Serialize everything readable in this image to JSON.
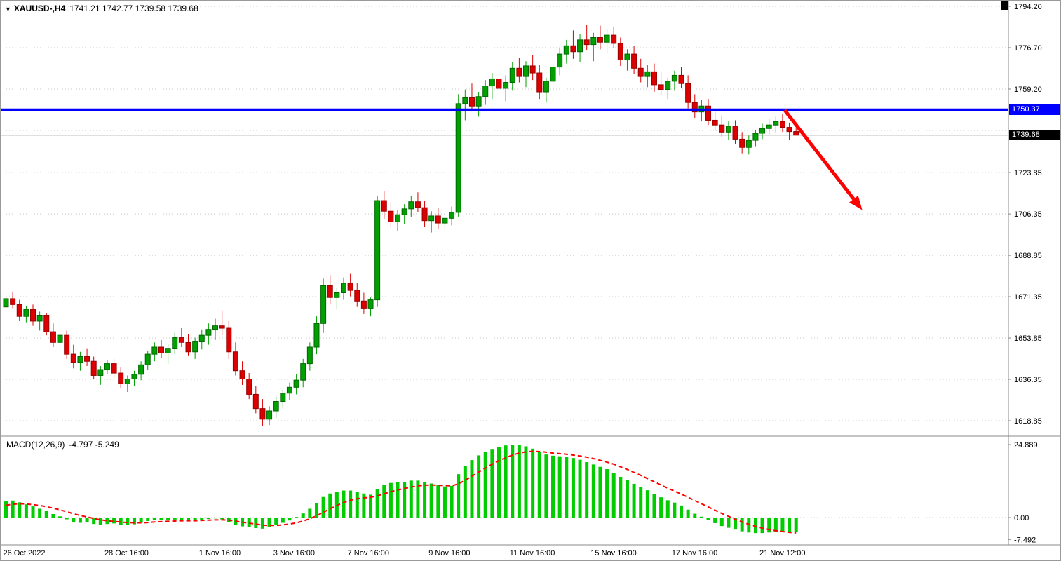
{
  "title_bar": {
    "dropdown_icon": "▼",
    "symbol": "XAUUSD-,H4",
    "ohlc": "1741.21 1742.77 1739.58 1739.68"
  },
  "price_axis": {
    "labels": [
      "1794.20",
      "1776.70",
      "1759.20",
      "1723.85",
      "1706.35",
      "1688.85",
      "1671.35",
      "1653.85",
      "1636.35",
      "1618.85"
    ],
    "blue_line_badge": "1750.37",
    "current_price_badge": "1739.68"
  },
  "macd_panel": {
    "label": "MACD(12,26,9)",
    "values": "-4.797 -5.249",
    "axis_labels": [
      "24.889",
      "0.00",
      "-7.492"
    ]
  },
  "colors": {
    "bull": "#00A000",
    "bull_stroke": "#006600",
    "bear": "#DD0000",
    "bear_stroke": "#990000",
    "macd_hist": "#00CC00",
    "signal": "#FF0000",
    "level_line": "#0000FF",
    "current_line": "#808080",
    "grid": "#C8C8C8",
    "separator": "#888888",
    "arrow": "#FF0000",
    "axis_text": "#000000"
  },
  "chart_data": [
    {
      "type": "candlestick",
      "title": "XAUUSD-,H4",
      "timeframe": "H4",
      "last_ohlc": {
        "open": 1741.21,
        "high": 1742.77,
        "low": 1739.58,
        "close": 1739.68
      },
      "ylim": [
        1612.0,
        1796.5
      ],
      "grid_levels": [
        1794.2,
        1776.7,
        1759.2,
        1741.7,
        1723.85,
        1706.35,
        1688.85,
        1671.35,
        1653.85,
        1636.35,
        1618.85
      ],
      "horizontal_level": 1750.37,
      "last_price": 1739.68,
      "x_tick_labels": [
        {
          "i": 0,
          "label": "26 Oct 2022"
        },
        {
          "i": 15,
          "label": "28 Oct 16:00"
        },
        {
          "i": 29,
          "label": "1 Nov 16:00"
        },
        {
          "i": 40,
          "label": "3 Nov 16:00"
        },
        {
          "i": 51,
          "label": "7 Nov 16:00"
        },
        {
          "i": 63,
          "label": "9 Nov 16:00"
        },
        {
          "i": 75,
          "label": "11 Nov 16:00"
        },
        {
          "i": 87,
          "label": "15 Nov 16:00"
        },
        {
          "i": 99,
          "label": "17 Nov 16:00"
        },
        {
          "i": 112,
          "label": "21 Nov 12:00"
        }
      ],
      "annotation_arrow": {
        "from": {
          "i": 115.3,
          "price": 1750.3
        },
        "to": {
          "i": 126.8,
          "price": 1708.0
        }
      },
      "candles": [
        [
          1667.0,
          1672.0,
          1664.0,
          1670.5
        ],
        [
          1670.5,
          1673.5,
          1666.5,
          1668.0
        ],
        [
          1668.0,
          1670.0,
          1661.0,
          1663.0
        ],
        [
          1663.0,
          1667.5,
          1660.5,
          1666.0
        ],
        [
          1666.0,
          1668.0,
          1659.0,
          1661.0
        ],
        [
          1661.0,
          1665.0,
          1657.0,
          1663.5
        ],
        [
          1663.5,
          1664.5,
          1655.0,
          1656.5
        ],
        [
          1656.5,
          1660.0,
          1650.0,
          1652.0
        ],
        [
          1652.0,
          1656.5,
          1648.5,
          1655.0
        ],
        [
          1655.0,
          1657.0,
          1645.0,
          1647.0
        ],
        [
          1647.0,
          1651.0,
          1641.0,
          1643.5
        ],
        [
          1643.5,
          1648.0,
          1640.0,
          1646.0
        ],
        [
          1646.0,
          1649.5,
          1642.0,
          1644.0
        ],
        [
          1644.0,
          1646.0,
          1636.5,
          1638.0
        ],
        [
          1638.0,
          1642.0,
          1634.0,
          1640.5
        ],
        [
          1640.5,
          1644.5,
          1638.5,
          1643.0
        ],
        [
          1643.0,
          1645.0,
          1637.0,
          1639.0
        ],
        [
          1639.0,
          1641.5,
          1632.5,
          1634.5
        ],
        [
          1634.5,
          1638.0,
          1631.0,
          1636.5
        ],
        [
          1636.5,
          1640.0,
          1633.5,
          1638.5
        ],
        [
          1638.5,
          1644.0,
          1636.0,
          1642.5
        ],
        [
          1642.5,
          1648.5,
          1640.5,
          1647.0
        ],
        [
          1647.0,
          1652.0,
          1644.0,
          1650.0
        ],
        [
          1650.0,
          1653.0,
          1645.5,
          1647.5
        ],
        [
          1647.5,
          1651.5,
          1643.0,
          1649.5
        ],
        [
          1649.5,
          1656.0,
          1647.0,
          1654.0
        ],
        [
          1654.0,
          1658.0,
          1650.0,
          1652.0
        ],
        [
          1652.0,
          1655.5,
          1646.5,
          1648.0
        ],
        [
          1648.0,
          1654.0,
          1645.0,
          1652.5
        ],
        [
          1652.5,
          1657.5,
          1649.0,
          1655.0
        ],
        [
          1655.0,
          1660.0,
          1651.0,
          1657.5
        ],
        [
          1657.5,
          1662.0,
          1653.0,
          1659.0
        ],
        [
          1659.0,
          1665.5,
          1655.0,
          1658.0
        ],
        [
          1658.0,
          1661.0,
          1645.0,
          1648.0
        ],
        [
          1648.0,
          1652.0,
          1638.0,
          1640.0
        ],
        [
          1640.0,
          1644.0,
          1634.0,
          1636.5
        ],
        [
          1636.5,
          1639.0,
          1628.0,
          1630.0
        ],
        [
          1630.0,
          1633.5,
          1622.0,
          1624.0
        ],
        [
          1624.0,
          1628.0,
          1616.5,
          1619.5
        ],
        [
          1619.5,
          1625.0,
          1617.0,
          1623.0
        ],
        [
          1623.0,
          1629.0,
          1620.0,
          1627.0
        ],
        [
          1627.0,
          1632.0,
          1624.0,
          1630.5
        ],
        [
          1630.5,
          1635.0,
          1627.5,
          1633.0
        ],
        [
          1633.0,
          1638.5,
          1630.0,
          1636.0
        ],
        [
          1636.0,
          1645.0,
          1633.0,
          1643.0
        ],
        [
          1643.0,
          1652.0,
          1640.0,
          1650.0
        ],
        [
          1650.0,
          1663.0,
          1647.0,
          1660.0
        ],
        [
          1660.0,
          1679.0,
          1656.0,
          1676.0
        ],
        [
          1676.0,
          1680.5,
          1668.0,
          1671.0
        ],
        [
          1671.0,
          1675.0,
          1666.0,
          1673.0
        ],
        [
          1673.0,
          1679.5,
          1670.0,
          1677.0
        ],
        [
          1677.0,
          1681.0,
          1671.5,
          1674.0
        ],
        [
          1674.0,
          1677.0,
          1667.0,
          1669.5
        ],
        [
          1669.5,
          1673.0,
          1664.0,
          1666.5
        ],
        [
          1666.5,
          1671.0,
          1663.0,
          1670.0
        ],
        [
          1670.0,
          1714.0,
          1667.0,
          1712.0
        ],
        [
          1712.0,
          1716.0,
          1704.0,
          1707.5
        ],
        [
          1707.5,
          1711.0,
          1700.5,
          1703.0
        ],
        [
          1703.0,
          1708.0,
          1699.0,
          1706.0
        ],
        [
          1706.0,
          1710.5,
          1702.0,
          1708.5
        ],
        [
          1708.5,
          1714.0,
          1705.0,
          1711.5
        ],
        [
          1711.5,
          1715.5,
          1707.0,
          1709.0
        ],
        [
          1709.0,
          1712.0,
          1701.0,
          1703.5
        ],
        [
          1703.5,
          1707.5,
          1698.5,
          1705.5
        ],
        [
          1705.5,
          1709.0,
          1700.0,
          1702.5
        ],
        [
          1702.5,
          1706.5,
          1699.5,
          1704.5
        ],
        [
          1704.5,
          1709.5,
          1701.5,
          1707.0
        ],
        [
          1707.0,
          1757.0,
          1705.0,
          1753.0
        ],
        [
          1753.0,
          1759.0,
          1746.0,
          1755.5
        ],
        [
          1755.5,
          1761.5,
          1750.0,
          1752.0
        ],
        [
          1752.0,
          1758.0,
          1747.5,
          1756.0
        ],
        [
          1756.0,
          1763.0,
          1752.5,
          1760.5
        ],
        [
          1760.5,
          1766.0,
          1755.0,
          1763.5
        ],
        [
          1763.5,
          1768.5,
          1757.0,
          1759.5
        ],
        [
          1759.5,
          1765.0,
          1754.0,
          1762.0
        ],
        [
          1762.0,
          1770.5,
          1758.5,
          1768.0
        ],
        [
          1768.0,
          1772.5,
          1762.0,
          1764.5
        ],
        [
          1764.5,
          1771.0,
          1760.0,
          1769.0
        ],
        [
          1769.0,
          1773.5,
          1763.0,
          1766.0
        ],
        [
          1766.0,
          1769.5,
          1755.0,
          1758.0
        ],
        [
          1758.0,
          1764.0,
          1753.5,
          1762.5
        ],
        [
          1762.5,
          1770.0,
          1759.0,
          1768.5
        ],
        [
          1768.5,
          1776.5,
          1765.0,
          1774.0
        ],
        [
          1774.0,
          1780.0,
          1770.0,
          1777.5
        ],
        [
          1777.5,
          1784.0,
          1772.0,
          1775.0
        ],
        [
          1775.0,
          1782.5,
          1770.5,
          1780.0
        ],
        [
          1780.0,
          1786.5,
          1775.5,
          1778.0
        ],
        [
          1778.0,
          1783.0,
          1771.0,
          1781.0
        ],
        [
          1781.0,
          1786.0,
          1776.0,
          1779.0
        ],
        [
          1779.0,
          1784.5,
          1774.5,
          1782.0
        ],
        [
          1782.0,
          1785.5,
          1776.5,
          1778.5
        ],
        [
          1778.5,
          1781.0,
          1769.0,
          1771.5
        ],
        [
          1771.5,
          1776.0,
          1767.0,
          1774.0
        ],
        [
          1774.0,
          1777.5,
          1765.5,
          1768.0
        ],
        [
          1768.0,
          1772.0,
          1762.0,
          1764.5
        ],
        [
          1764.5,
          1769.5,
          1760.0,
          1766.5
        ],
        [
          1766.5,
          1770.0,
          1758.0,
          1761.0
        ],
        [
          1761.0,
          1766.5,
          1756.5,
          1759.0
        ],
        [
          1759.0,
          1764.0,
          1755.0,
          1762.5
        ],
        [
          1762.5,
          1767.0,
          1758.5,
          1765.0
        ],
        [
          1765.0,
          1768.5,
          1759.5,
          1761.5
        ],
        [
          1761.5,
          1765.0,
          1751.0,
          1753.5
        ],
        [
          1753.5,
          1757.0,
          1747.0,
          1749.5
        ],
        [
          1749.5,
          1754.5,
          1745.5,
          1752.0
        ],
        [
          1752.0,
          1755.0,
          1744.0,
          1746.0
        ],
        [
          1746.0,
          1750.5,
          1741.5,
          1744.0
        ],
        [
          1744.0,
          1748.0,
          1739.0,
          1741.0
        ],
        [
          1741.0,
          1745.5,
          1737.5,
          1743.5
        ],
        [
          1743.5,
          1746.0,
          1736.0,
          1738.0
        ],
        [
          1738.0,
          1741.0,
          1732.0,
          1734.5
        ],
        [
          1734.5,
          1739.5,
          1731.5,
          1737.5
        ],
        [
          1737.5,
          1742.0,
          1735.0,
          1740.5
        ],
        [
          1740.5,
          1744.5,
          1738.0,
          1742.5
        ],
        [
          1742.5,
          1746.5,
          1740.0,
          1744.0
        ],
        [
          1744.0,
          1747.5,
          1740.5,
          1745.5
        ],
        [
          1745.5,
          1748.5,
          1741.0,
          1743.0
        ],
        [
          1743.0,
          1745.0,
          1737.5,
          1741.2
        ],
        [
          1741.21,
          1742.77,
          1739.58,
          1739.68
        ]
      ]
    },
    {
      "type": "bar+line",
      "name": "MACD(12,26,9)",
      "main_value": -4.797,
      "signal_value": -5.249,
      "ylim": [
        -9.5,
        27.5
      ],
      "y_ticks": [
        24.889,
        0.0,
        -7.492
      ],
      "histogram": [
        5.5,
        5.8,
        5.2,
        4.5,
        3.8,
        3.0,
        2.2,
        1.2,
        0.4,
        -0.6,
        -1.5,
        -1.8,
        -1.6,
        -2.2,
        -2.6,
        -2.2,
        -2.0,
        -2.4,
        -2.6,
        -2.3,
        -1.8,
        -1.2,
        -0.8,
        -0.9,
        -1.0,
        -0.7,
        -0.8,
        -1.2,
        -1.1,
        -0.8,
        -0.5,
        -0.3,
        -0.6,
        -1.6,
        -2.4,
        -3.0,
        -3.3,
        -3.6,
        -3.8,
        -3.3,
        -2.6,
        -1.8,
        -1.0,
        0.2,
        1.4,
        3.0,
        4.8,
        7.0,
        8.2,
        8.8,
        9.2,
        9.2,
        8.8,
        8.2,
        7.8,
        9.8,
        11.2,
        11.8,
        12.0,
        12.2,
        12.6,
        12.6,
        12.0,
        11.6,
        11.0,
        10.6,
        10.8,
        14.8,
        17.6,
        19.6,
        21.2,
        22.4,
        23.4,
        24.1,
        24.6,
        24.889,
        24.7,
        24.3,
        23.5,
        22.3,
        21.5,
        21.1,
        20.9,
        20.7,
        20.3,
        19.7,
        18.9,
        18.1,
        17.3,
        16.5,
        15.3,
        13.9,
        12.7,
        11.5,
        10.3,
        9.3,
        8.1,
        6.9,
        5.9,
        5.1,
        4.1,
        2.7,
        1.3,
        0.3,
        -0.9,
        -1.9,
        -2.9,
        -3.5,
        -4.1,
        -4.7,
        -5.1,
        -5.3,
        -5.3,
        -5.1,
        -5.0,
        -4.95,
        -4.9,
        -4.797
      ],
      "signal": [
        4.2,
        4.5,
        4.7,
        4.6,
        4.4,
        4.1,
        3.7,
        3.2,
        2.6,
        2.0,
        1.3,
        0.7,
        0.2,
        -0.3,
        -0.8,
        -1.1,
        -1.3,
        -1.5,
        -1.7,
        -1.8,
        -1.8,
        -1.7,
        -1.5,
        -1.4,
        -1.3,
        -1.2,
        -1.1,
        -1.1,
        -1.1,
        -1.0,
        -0.9,
        -0.8,
        -0.8,
        -0.9,
        -1.2,
        -1.6,
        -1.9,
        -2.2,
        -2.6,
        -2.7,
        -2.7,
        -2.5,
        -2.2,
        -1.8,
        -1.2,
        -0.4,
        0.6,
        1.8,
        3.0,
        4.1,
        5.1,
        5.9,
        6.4,
        6.7,
        6.9,
        7.4,
        8.1,
        8.8,
        9.4,
        9.9,
        10.4,
        10.8,
        11.0,
        11.1,
        11.0,
        10.9,
        10.8,
        11.5,
        12.7,
        14.1,
        15.5,
        16.9,
        18.2,
        19.4,
        20.4,
        21.3,
        22.0,
        22.4,
        22.6,
        22.5,
        22.3,
        22.0,
        21.8,
        21.6,
        21.3,
        21.0,
        20.6,
        20.1,
        19.5,
        18.9,
        18.2,
        17.3,
        16.4,
        15.4,
        14.4,
        13.3,
        12.2,
        11.1,
        10.0,
        9.0,
        8.0,
        6.9,
        5.8,
        4.7,
        3.6,
        2.5,
        1.4,
        0.4,
        -0.6,
        -1.5,
        -2.3,
        -3.0,
        -3.6,
        -4.1,
        -4.5,
        -4.8,
        -5.05,
        -5.249
      ]
    }
  ]
}
